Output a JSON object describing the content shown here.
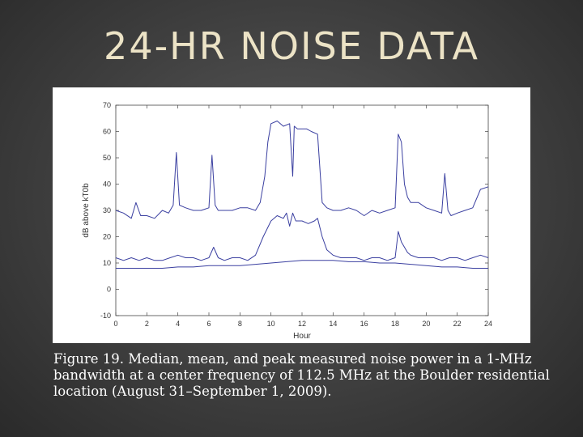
{
  "slide": {
    "title": "24-HR NOISE DATA",
    "caption_lines": [
      "Figure 19. Median, mean, and peak measured noise power in a 1-MHz",
      "bandwidth at a center frequency of 112.5 MHz at the Boulder residential",
      "location (August 31–September 1, 2009)."
    ]
  },
  "chart_data": {
    "type": "line",
    "xlabel": "Hour",
    "ylabel": "dB above kT0b",
    "xlim": [
      0,
      24
    ],
    "ylim": [
      -10,
      70
    ],
    "x_ticks": [
      0,
      2,
      4,
      6,
      8,
      10,
      12,
      14,
      16,
      18,
      20,
      22,
      24
    ],
    "y_ticks": [
      -10,
      0,
      10,
      20,
      30,
      40,
      50,
      60,
      70
    ],
    "x_tick_labels": [
      "0",
      "2",
      "4",
      "6",
      "8",
      "10",
      "12",
      "14",
      "16",
      "18",
      "20",
      "22",
      "24"
    ],
    "y_tick_labels": [
      "-10",
      "0",
      "10",
      "20",
      "30",
      "40",
      "50",
      "60",
      "70"
    ],
    "grid": false,
    "line_color": "#3a3fa0",
    "series": [
      {
        "x": [
          0,
          0.5,
          1,
          1.3,
          1.6,
          2,
          2.5,
          3,
          3.4,
          3.7,
          3.9,
          4.1,
          4.5,
          5,
          5.5,
          6,
          6.2,
          6.4,
          6.6,
          7,
          7.5,
          8,
          8.5,
          9,
          9.3,
          9.6,
          9.8,
          10,
          10.4,
          10.8,
          11.2,
          11.4,
          11.5,
          11.7,
          12,
          12.3,
          12.6,
          13,
          13.3,
          13.6,
          14,
          14.5,
          15,
          15.5,
          16,
          16.5,
          17,
          17.5,
          18,
          18.2,
          18.4,
          18.6,
          18.8,
          19,
          19.5,
          20,
          20.5,
          21,
          21.2,
          21.4,
          21.6,
          22,
          22.5,
          23,
          23.5,
          24
        ],
        "y": [
          30,
          29,
          27,
          33,
          28,
          28,
          27,
          30,
          29,
          32,
          52,
          32,
          31,
          30,
          30,
          31,
          51,
          32,
          30,
          30,
          30,
          31,
          31,
          30,
          33,
          43,
          56,
          63,
          64,
          62,
          63,
          43,
          62,
          61,
          61,
          61,
          60,
          59,
          33,
          31,
          30,
          30,
          31,
          30,
          28,
          30,
          29,
          30,
          31,
          59,
          56,
          40,
          35,
          33,
          33,
          31,
          30,
          29,
          44,
          30,
          28,
          29,
          30,
          31,
          38,
          39
        ]
      },
      {
        "x": [
          0,
          0.5,
          1,
          1.5,
          2,
          2.5,
          3,
          3.5,
          4,
          4.5,
          5,
          5.5,
          6,
          6.3,
          6.6,
          7,
          7.5,
          8,
          8.5,
          9,
          9.5,
          10,
          10.4,
          10.8,
          11,
          11.2,
          11.4,
          11.6,
          12,
          12.4,
          12.8,
          13,
          13.3,
          13.6,
          14,
          14.5,
          15,
          15.5,
          16,
          16.5,
          17,
          17.5,
          18,
          18.2,
          18.4,
          18.8,
          19,
          19.5,
          20,
          20.5,
          21,
          21.5,
          22,
          22.5,
          23,
          23.5,
          24
        ],
        "y": [
          12,
          11,
          12,
          11,
          12,
          11,
          11,
          12,
          13,
          12,
          12,
          11,
          12,
          16,
          12,
          11,
          12,
          12,
          11,
          13,
          20,
          26,
          28,
          27,
          29,
          24,
          29,
          26,
          26,
          25,
          26,
          27,
          20,
          15,
          13,
          12,
          12,
          12,
          11,
          12,
          12,
          11,
          12,
          22,
          18,
          14,
          13,
          12,
          12,
          12,
          11,
          12,
          12,
          11,
          12,
          13,
          12
        ]
      },
      {
        "x": [
          0,
          1,
          2,
          3,
          4,
          5,
          6,
          7,
          8,
          9,
          10,
          11,
          12,
          13,
          14,
          15,
          16,
          17,
          18,
          19,
          20,
          21,
          22,
          23,
          24
        ],
        "y": [
          8,
          8,
          8,
          8,
          8.5,
          8.5,
          9,
          9,
          9,
          9.5,
          10,
          10.5,
          11,
          11,
          11,
          10.5,
          10.5,
          10,
          10,
          9.5,
          9,
          8.5,
          8.5,
          8,
          8
        ]
      }
    ]
  }
}
